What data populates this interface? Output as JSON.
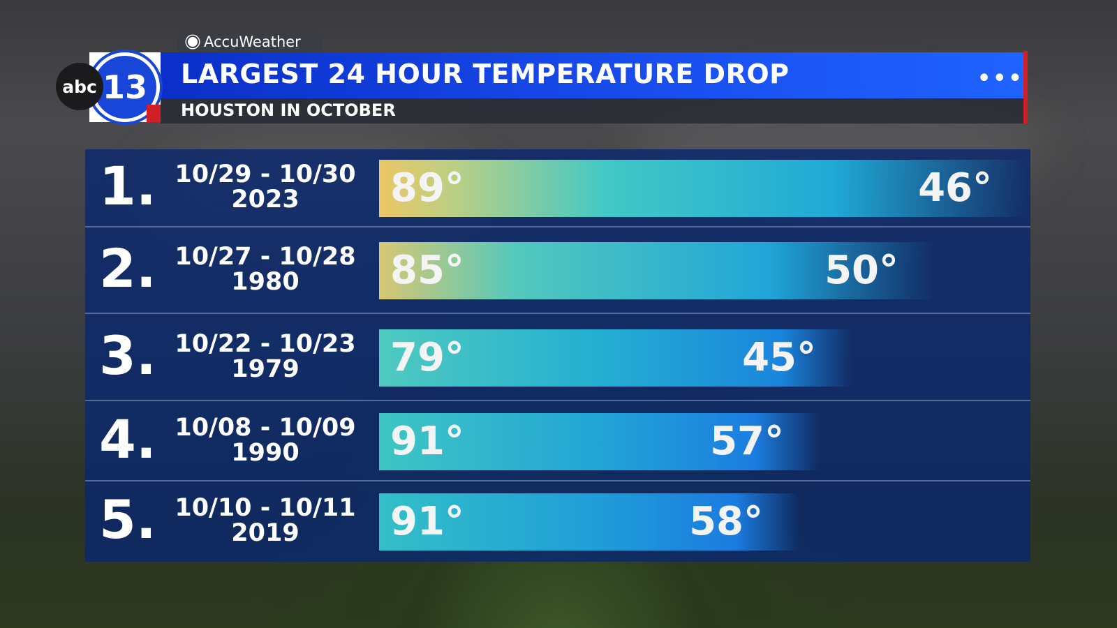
{
  "header": {
    "brand": "AccuWeather",
    "logo_network": "abc",
    "logo_number": "13",
    "title": "LARGEST 24 HOUR TEMPERATURE DROP",
    "subtitle": "HOUSTON IN OCTOBER"
  },
  "rows": [
    {
      "rank": "1.",
      "dates": "10/29 - 10/30",
      "year": "2023",
      "high": "89°",
      "low": "46°"
    },
    {
      "rank": "2.",
      "dates": "10/27 - 10/28",
      "year": "1980",
      "high": "85°",
      "low": "50°"
    },
    {
      "rank": "3.",
      "dates": "10/22 - 10/23",
      "year": "1979",
      "high": "79°",
      "low": "45°"
    },
    {
      "rank": "4.",
      "dates": "10/08 - 10/09",
      "year": "1990",
      "high": "91°",
      "low": "57°"
    },
    {
      "rank": "5.",
      "dates": "10/10 - 10/11",
      "year": "2019",
      "high": "91°",
      "low": "58°"
    }
  ]
}
